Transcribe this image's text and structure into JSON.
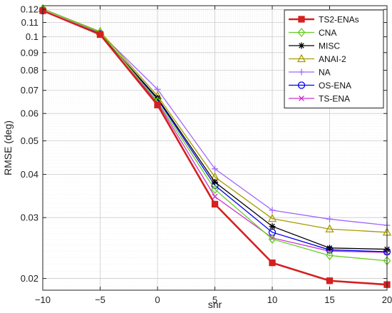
{
  "chart_data": {
    "type": "line",
    "title": "",
    "xlabel": "snr",
    "ylabel": "RMSE (deg)",
    "x": [
      -10,
      -5,
      0,
      5,
      10,
      15,
      20
    ],
    "xlim": [
      -10,
      20
    ],
    "ylim": [
      0.0185,
      0.123
    ],
    "yscale": "log",
    "grid": true,
    "legend_position": "top-right",
    "xticks": [
      -10,
      -5,
      0,
      5,
      10,
      15,
      20
    ],
    "xtick_labels": [
      "−10",
      "−5",
      "0",
      "5",
      "10",
      "15",
      "20"
    ],
    "yticks": [
      0.02,
      0.03,
      0.04,
      0.05,
      0.06,
      0.07,
      0.08,
      0.09,
      0.1,
      0.11,
      0.12
    ],
    "ytick_labels": [
      "0.02",
      "0.03",
      "0.04",
      "0.05",
      "0.06",
      "0.07",
      "0.08",
      "0.09",
      "0.1",
      "0.11",
      "0.12"
    ],
    "series": [
      {
        "name": "TS2-ENAs",
        "color": "#d42020",
        "marker": "square",
        "values": [
          0.119,
          0.1015,
          0.0635,
          0.0328,
          0.0222,
          0.0197,
          0.0192
        ]
      },
      {
        "name": "CNA",
        "color": "#66cc22",
        "marker": "diamond",
        "values": [
          0.1205,
          0.103,
          0.065,
          0.0362,
          0.026,
          0.0233,
          0.0225
        ]
      },
      {
        "name": "MISC",
        "color": "#000000",
        "marker": "asterisk",
        "values": [
          0.119,
          0.102,
          0.0665,
          0.038,
          0.0283,
          0.0245,
          0.0243
        ]
      },
      {
        "name": "ANAI-2",
        "color": "#a89a00",
        "marker": "triangle",
        "values": [
          0.1205,
          0.1035,
          0.0675,
          0.0393,
          0.0298,
          0.0278,
          0.0272
        ]
      },
      {
        "name": "NA",
        "color": "#a066ff",
        "marker": "plus",
        "values": [
          0.1205,
          0.1025,
          0.0705,
          0.0415,
          0.0315,
          0.0297,
          0.0285
        ]
      },
      {
        "name": "OS-ENA",
        "color": "#0000ee",
        "marker": "circle",
        "values": [
          0.119,
          0.102,
          0.066,
          0.0372,
          0.0272,
          0.0242,
          0.0239
        ]
      },
      {
        "name": "TS-ENA",
        "color": "#cc33cc",
        "marker": "x",
        "values": [
          0.119,
          0.1015,
          0.0645,
          0.0345,
          0.0262,
          0.024,
          0.0238
        ]
      }
    ]
  }
}
